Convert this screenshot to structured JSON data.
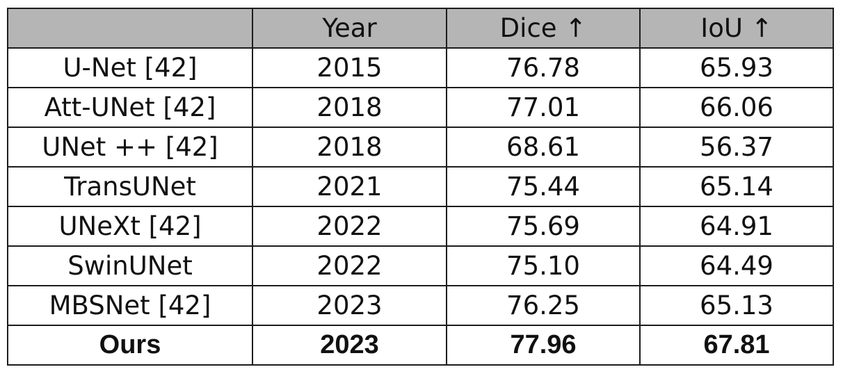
{
  "chart_data": {
    "type": "table",
    "columns": [
      "",
      "Year",
      "Dice ↑",
      "IoU ↑"
    ],
    "rows": [
      {
        "method": "U-Net [42]",
        "year": "2015",
        "dice": "76.78",
        "iou": "65.93",
        "bold": false
      },
      {
        "method": "Att-UNet [42]",
        "year": "2018",
        "dice": "77.01",
        "iou": "66.06",
        "bold": false
      },
      {
        "method": "UNet ++ [42]",
        "year": "2018",
        "dice": "68.61",
        "iou": "56.37",
        "bold": false
      },
      {
        "method": "TransUNet",
        "year": "2021",
        "dice": "75.44",
        "iou": "65.14",
        "bold": false
      },
      {
        "method": "UNeXt [42]",
        "year": "2022",
        "dice": "75.69",
        "iou": "64.91",
        "bold": false
      },
      {
        "method": "SwinUNet",
        "year": "2022",
        "dice": "75.10",
        "iou": "64.49",
        "bold": false
      },
      {
        "method": "MBSNet [42]",
        "year": "2023",
        "dice": "76.25",
        "iou": "65.13",
        "bold": false
      },
      {
        "method": "Ours",
        "year": "2023",
        "dice": "77.96",
        "iou": "67.81",
        "bold": true
      }
    ]
  },
  "colors": {
    "header_bg": "#b5b5b5",
    "border": "#1c1c1c",
    "text": "#111111"
  }
}
